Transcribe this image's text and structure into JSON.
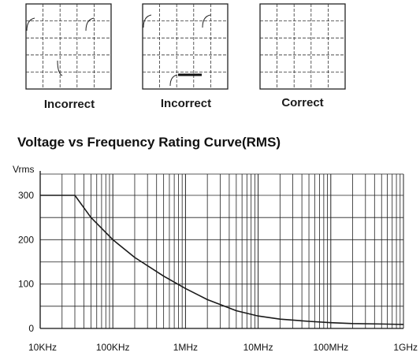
{
  "scopes": [
    {
      "label": "Incorrect",
      "waveform": "spikes"
    },
    {
      "label": "Incorrect",
      "waveform": "spikes-with-pulse"
    },
    {
      "label": "Correct",
      "waveform": "none"
    }
  ],
  "chart_data": {
    "type": "line",
    "title": "Voltage vs Frequency Rating Curve(RMS)",
    "ylabel": "Vrms",
    "xlabel": "",
    "xscale": "log",
    "x_tick_labels": [
      "10KHz",
      "100KHz",
      "1MHz",
      "10MHz",
      "100MHz",
      "1GHz"
    ],
    "x_tick_values_hz": [
      10000,
      100000,
      1000000,
      10000000,
      100000000,
      1000000000
    ],
    "y_tick_labels": [
      "0",
      "100",
      "200",
      "300"
    ],
    "y_tick_values": [
      0,
      100,
      200,
      300
    ],
    "xlim_hz": [
      10000,
      1000000000
    ],
    "ylim": [
      0,
      300
    ],
    "grid": true,
    "line_color": "#1a1a1a",
    "series": [
      {
        "x_hz": [
          10000,
          30000,
          50000,
          100000,
          200000,
          500000,
          1000000,
          2000000,
          5000000,
          10000000,
          20000000,
          50000000,
          100000000,
          200000000,
          500000000,
          1000000000
        ],
        "y": [
          300,
          300,
          250,
          200,
          160,
          118,
          90,
          65,
          40,
          28,
          21,
          16,
          13,
          11,
          10,
          9
        ]
      }
    ]
  }
}
